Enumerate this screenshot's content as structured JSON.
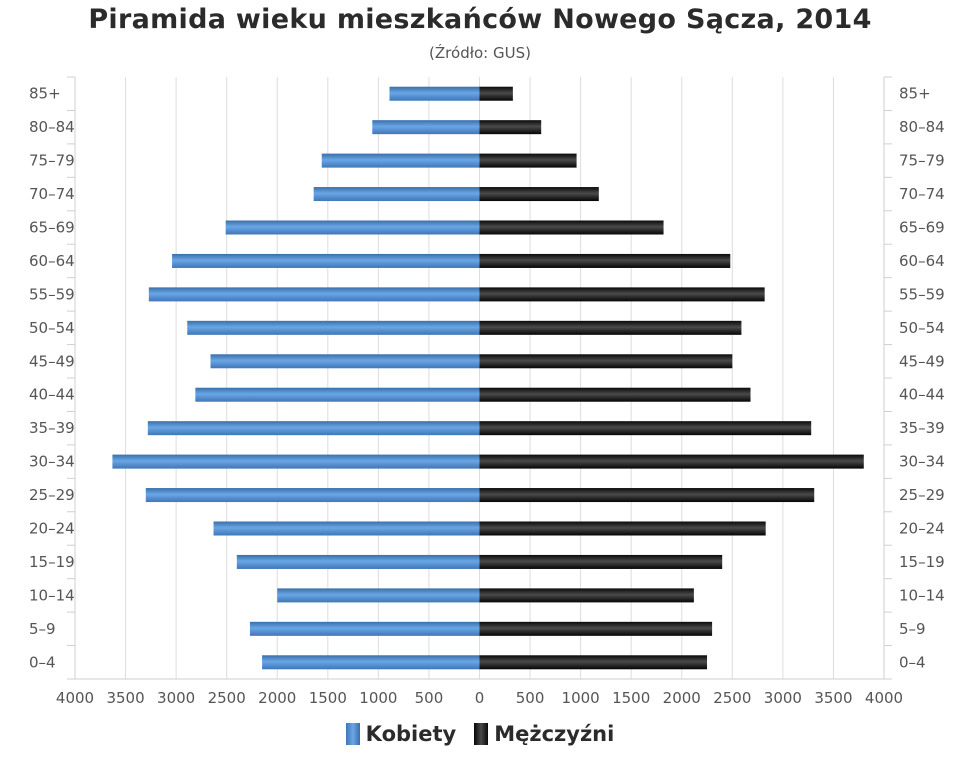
{
  "title": "Piramida wieku mieszkańców Nowego Sącza, 2014",
  "subtitle": "(Źródło: GUS)",
  "legend": {
    "female": "Kobiety",
    "male": "Mężczyźni"
  },
  "colors": {
    "female": "#4a86c8",
    "male": "#111111",
    "grid": "#dddddd"
  },
  "chart_data": {
    "type": "bar",
    "orientation": "horizontal-pyramid",
    "categories": [
      "0–4",
      "5–9",
      "10–14",
      "15–19",
      "20–24",
      "25–29",
      "30–34",
      "35–39",
      "40–44",
      "45–49",
      "50–54",
      "55–59",
      "60–64",
      "65–69",
      "70–74",
      "75–79",
      "80–84",
      "85+"
    ],
    "series": [
      {
        "name": "Kobiety",
        "side": "left",
        "values": [
          2150,
          2270,
          2000,
          2400,
          2630,
          3300,
          3630,
          3280,
          2810,
          2660,
          2890,
          3270,
          3040,
          2510,
          1640,
          1560,
          1060,
          890
        ]
      },
      {
        "name": "Mężczyźni",
        "side": "right",
        "values": [
          2250,
          2300,
          2120,
          2400,
          2830,
          3310,
          3800,
          3280,
          2680,
          2500,
          2590,
          2820,
          2480,
          1820,
          1180,
          960,
          610,
          330
        ]
      }
    ],
    "xlim": [
      -4000,
      4000
    ],
    "x_tick_labels": [
      "4000",
      "3500",
      "3000",
      "2500",
      "2000",
      "1500",
      "1000",
      "500",
      "0",
      "500",
      "1000",
      "1500",
      "2000",
      "2500",
      "3000",
      "3500",
      "4000"
    ],
    "grid": "vertical",
    "legend_position": "bottom-center"
  }
}
